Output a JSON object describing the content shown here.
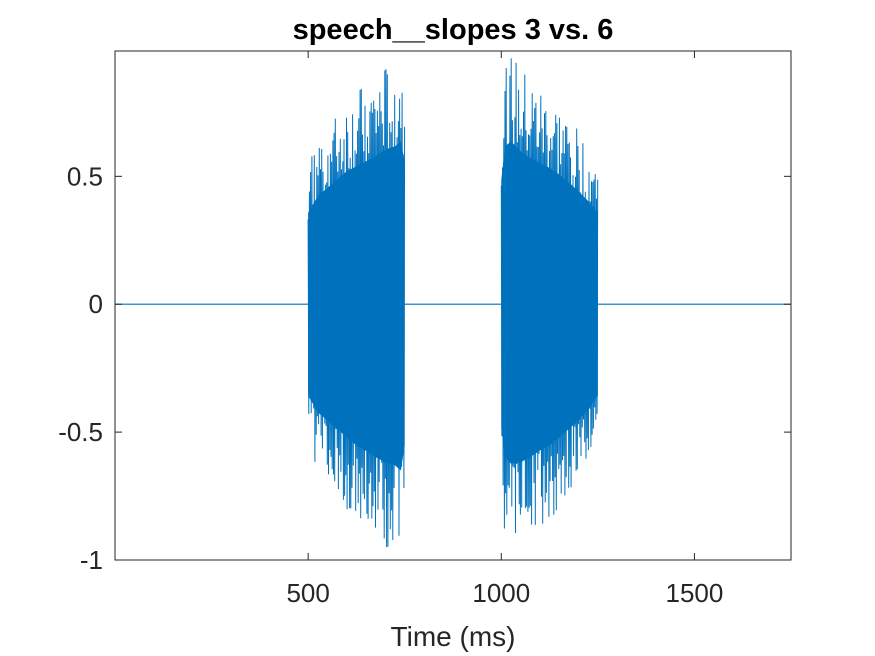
{
  "chart_data": {
    "type": "line",
    "title": "speech__slopes 3 vs. 6",
    "xlabel": "Time (ms)",
    "ylabel": "",
    "xlim": [
      0,
      1750
    ],
    "ylim": [
      -1,
      0.99
    ],
    "x_ticks": [
      500,
      1000,
      1500
    ],
    "x_tick_labels": [
      "500",
      "1000",
      "1500"
    ],
    "y_ticks": [
      -1,
      -0.5,
      0,
      0.5
    ],
    "y_tick_labels": [
      "-1",
      "-0.5",
      "0",
      "0.5"
    ],
    "grid": false,
    "line_color": "#0072BD",
    "series": [
      {
        "segments": [
          {
            "x": [
              0,
              500
            ],
            "y": [
              0,
              0
            ]
          },
          {
            "x": [
              500,
              525,
              550,
              575,
              600,
              625,
              650,
              675,
              700,
              725,
              740,
              750
            ],
            "upper": [
              0.55,
              0.65,
              0.7,
              0.75,
              0.8,
              0.83,
              0.86,
              0.89,
              0.93,
              0.95,
              0.98,
              0.85
            ],
            "lower": [
              -0.55,
              -0.65,
              -0.7,
              -0.75,
              -0.8,
              -0.85,
              -0.88,
              -0.92,
              -0.95,
              -0.97,
              -1.0,
              -0.85
            ]
          },
          {
            "x": [
              750,
              1000
            ],
            "y": [
              0,
              0
            ]
          },
          {
            "x": [
              1000,
              1010,
              1025,
              1050,
              1075,
              1100,
              1125,
              1150,
              1175,
              1200,
              1225,
              1250
            ],
            "upper": [
              0.75,
              0.95,
              0.98,
              0.92,
              0.88,
              0.85,
              0.82,
              0.78,
              0.73,
              0.68,
              0.62,
              0.55
            ],
            "lower": [
              -0.75,
              -0.92,
              -0.96,
              -0.95,
              -0.92,
              -0.88,
              -0.85,
              -0.8,
              -0.75,
              -0.7,
              -0.63,
              -0.55
            ]
          },
          {
            "x": [
              1250,
              1750
            ],
            "y": [
              0,
              0
            ]
          }
        ]
      }
    ]
  }
}
